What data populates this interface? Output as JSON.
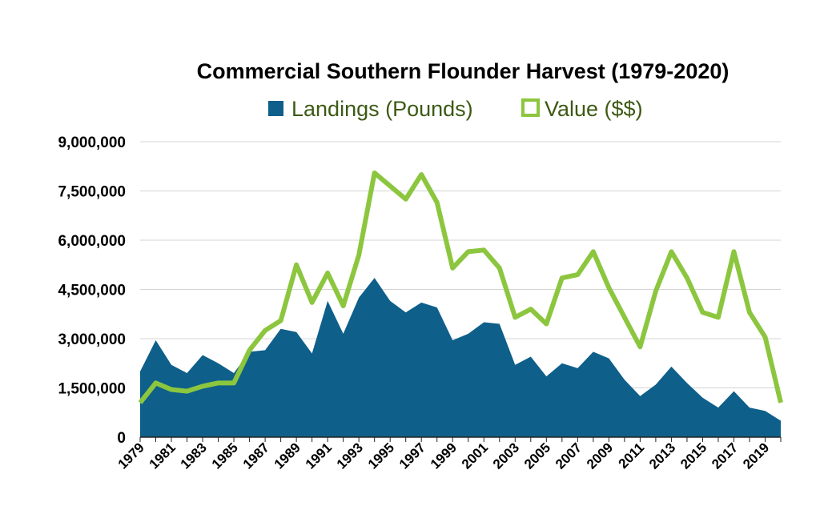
{
  "chart_data": {
    "type": "area",
    "title": "Commercial Southern Flounder Harvest (1979-2020)",
    "xlabel": "",
    "ylabel": "",
    "ylim": [
      0,
      9000000
    ],
    "yticks": [
      0,
      1500000,
      3000000,
      4500000,
      6000000,
      7500000,
      9000000
    ],
    "ytick_labels": [
      "0",
      "1,500,000",
      "3,000,000",
      "4,500,000",
      "6,000,000",
      "7,500,000",
      "9,000,000"
    ],
    "x": [
      1979,
      1980,
      1981,
      1982,
      1983,
      1984,
      1985,
      1986,
      1987,
      1988,
      1989,
      1990,
      1991,
      1992,
      1993,
      1994,
      1995,
      1996,
      1997,
      1998,
      1999,
      2000,
      2001,
      2002,
      2003,
      2004,
      2005,
      2006,
      2007,
      2008,
      2009,
      2010,
      2011,
      2012,
      2013,
      2014,
      2015,
      2016,
      2017,
      2018,
      2019,
      2020
    ],
    "xtick_labels": [
      "1979",
      "1981",
      "1983",
      "1985",
      "1987",
      "1989",
      "1991",
      "1993",
      "1995",
      "1997",
      "1999",
      "2001",
      "2003",
      "2005",
      "2007",
      "2009",
      "2011",
      "2013",
      "2015",
      "2017",
      "2019"
    ],
    "grid": true,
    "legend_position": "top",
    "series": [
      {
        "name": "Landings (Pounds)",
        "type": "area",
        "color": "#0e5f8a",
        "values": [
          2000000,
          2950000,
          2200000,
          1950000,
          2500000,
          2250000,
          1950000,
          2600000,
          2650000,
          3300000,
          3200000,
          2550000,
          4150000,
          3150000,
          4250000,
          4850000,
          4150000,
          3800000,
          4100000,
          3950000,
          2950000,
          3150000,
          3500000,
          3450000,
          2200000,
          2450000,
          1850000,
          2250000,
          2100000,
          2600000,
          2400000,
          1750000,
          1250000,
          1600000,
          2150000,
          1650000,
          1200000,
          900000,
          1400000,
          900000,
          800000,
          500000
        ]
      },
      {
        "name": "Value ($$)",
        "type": "line",
        "color": "#8cc63f",
        "values": [
          1050000,
          1650000,
          1450000,
          1400000,
          1550000,
          1650000,
          1650000,
          2650000,
          3250000,
          3550000,
          5250000,
          4100000,
          5000000,
          4000000,
          5550000,
          8050000,
          7650000,
          7250000,
          8000000,
          7150000,
          5150000,
          5650000,
          5700000,
          5150000,
          3650000,
          3900000,
          3450000,
          4850000,
          4950000,
          5650000,
          4550000,
          3650000,
          2750000,
          4450000,
          5650000,
          4850000,
          3800000,
          3650000,
          5650000,
          3800000,
          3050000,
          1050000
        ]
      }
    ]
  }
}
